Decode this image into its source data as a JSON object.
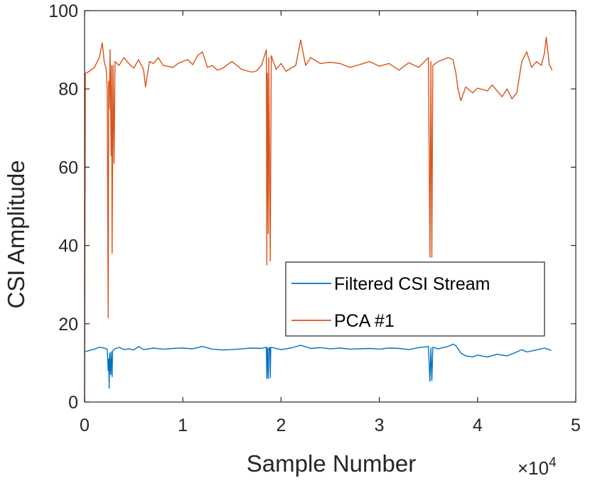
{
  "chart_data": {
    "type": "line",
    "title": "",
    "xlabel": "Sample Number",
    "ylabel": "CSI Amplitude",
    "xlim": [
      0,
      50000
    ],
    "ylim": [
      0,
      100
    ],
    "x_tick_labels": [
      "0",
      "1",
      "2",
      "3",
      "4",
      "5"
    ],
    "x_exponent_label": "×10",
    "x_exponent_power": "4",
    "y_tick_labels": [
      "0",
      "20",
      "40",
      "60",
      "80",
      "100"
    ],
    "x_ticks": [
      0,
      10000,
      20000,
      30000,
      40000,
      50000
    ],
    "y_ticks": [
      0,
      20,
      40,
      60,
      80,
      100
    ],
    "grid": false,
    "legend_position": "lower-right",
    "colors": {
      "filtered": "#0072BD",
      "pca": "#D95319",
      "axis": "#262626"
    },
    "series": [
      {
        "name": "Filtered CSI Stream",
        "color": "#0072BD",
        "points": [
          [
            0,
            12.8
          ],
          [
            500,
            13.2
          ],
          [
            1000,
            13.5
          ],
          [
            1500,
            14.0
          ],
          [
            2000,
            13.8
          ],
          [
            2300,
            13.5
          ],
          [
            2400,
            8.0
          ],
          [
            2450,
            11.0
          ],
          [
            2500,
            3.5
          ],
          [
            2550,
            12.5
          ],
          [
            2650,
            7.0
          ],
          [
            2700,
            12.8
          ],
          [
            2800,
            6.5
          ],
          [
            2850,
            13.0
          ],
          [
            3000,
            13.5
          ],
          [
            3500,
            14.0
          ],
          [
            4000,
            13.4
          ],
          [
            4500,
            13.6
          ],
          [
            5000,
            13.3
          ],
          [
            5500,
            14.2
          ],
          [
            6000,
            13.4
          ],
          [
            7000,
            13.8
          ],
          [
            8000,
            13.5
          ],
          [
            9000,
            13.7
          ],
          [
            10000,
            13.8
          ],
          [
            11000,
            13.6
          ],
          [
            12000,
            14.2
          ],
          [
            13000,
            13.5
          ],
          [
            14000,
            13.3
          ],
          [
            15000,
            13.4
          ],
          [
            16000,
            13.6
          ],
          [
            17000,
            13.8
          ],
          [
            18000,
            13.7
          ],
          [
            18500,
            14.0
          ],
          [
            18550,
            6.0
          ],
          [
            18600,
            13.8
          ],
          [
            18700,
            6.0
          ],
          [
            18750,
            13.8
          ],
          [
            18850,
            13.9
          ],
          [
            18900,
            6.2
          ],
          [
            18950,
            13.9
          ],
          [
            19000,
            14.0
          ],
          [
            20000,
            13.4
          ],
          [
            21000,
            13.8
          ],
          [
            22000,
            14.5
          ],
          [
            23000,
            13.7
          ],
          [
            24000,
            13.9
          ],
          [
            25000,
            13.6
          ],
          [
            26000,
            13.8
          ],
          [
            27000,
            13.5
          ],
          [
            28000,
            13.6
          ],
          [
            29000,
            13.7
          ],
          [
            30000,
            13.5
          ],
          [
            31000,
            13.8
          ],
          [
            32000,
            13.7
          ],
          [
            33000,
            13.4
          ],
          [
            34000,
            13.9
          ],
          [
            35000,
            14.2
          ],
          [
            35150,
            5.3
          ],
          [
            35250,
            13.8
          ],
          [
            35350,
            5.5
          ],
          [
            35450,
            14.0
          ],
          [
            36000,
            13.6
          ],
          [
            37000,
            14.2
          ],
          [
            37500,
            14.8
          ],
          [
            37800,
            14.4
          ],
          [
            38300,
            12.5
          ],
          [
            38800,
            11.8
          ],
          [
            39500,
            11.5
          ],
          [
            40000,
            12.0
          ],
          [
            41000,
            11.5
          ],
          [
            42000,
            12.2
          ],
          [
            43000,
            11.8
          ],
          [
            44000,
            12.8
          ],
          [
            44500,
            13.4
          ],
          [
            45000,
            12.8
          ],
          [
            46000,
            13.3
          ],
          [
            46800,
            13.8
          ],
          [
            47500,
            13.2
          ]
        ]
      },
      {
        "name": "PCA #1",
        "color": "#D95319",
        "points": [
          [
            0,
            0
          ],
          [
            80,
            84
          ],
          [
            500,
            84.5
          ],
          [
            1000,
            85.5
          ],
          [
            1500,
            88
          ],
          [
            1800,
            91.8
          ],
          [
            2000,
            87
          ],
          [
            2200,
            85
          ],
          [
            2300,
            80
          ],
          [
            2400,
            21.5
          ],
          [
            2450,
            82
          ],
          [
            2500,
            75
          ],
          [
            2600,
            90
          ],
          [
            2700,
            63
          ],
          [
            2750,
            86
          ],
          [
            2800,
            38
          ],
          [
            2900,
            86
          ],
          [
            3000,
            61
          ],
          [
            3100,
            87
          ],
          [
            3500,
            86
          ],
          [
            4000,
            88
          ],
          [
            4500,
            86.5
          ],
          [
            5000,
            85.3
          ],
          [
            5500,
            87.5
          ],
          [
            6000,
            85
          ],
          [
            6200,
            80.5
          ],
          [
            6600,
            87
          ],
          [
            7000,
            86.5
          ],
          [
            7500,
            88
          ],
          [
            8000,
            86
          ],
          [
            9000,
            85.5
          ],
          [
            9500,
            86.5
          ],
          [
            10000,
            87
          ],
          [
            10500,
            87.5
          ],
          [
            11000,
            86.2
          ],
          [
            11500,
            88.5
          ],
          [
            12000,
            89.5
          ],
          [
            12500,
            85.5
          ],
          [
            13000,
            86
          ],
          [
            13500,
            84.8
          ],
          [
            14000,
            85.2
          ],
          [
            15000,
            87
          ],
          [
            16000,
            85
          ],
          [
            17000,
            84.3
          ],
          [
            17500,
            84.6
          ],
          [
            18000,
            86
          ],
          [
            18500,
            90
          ],
          [
            18550,
            35
          ],
          [
            18600,
            84
          ],
          [
            18700,
            43
          ],
          [
            18750,
            88
          ],
          [
            18900,
            36
          ],
          [
            19000,
            88.5
          ],
          [
            19500,
            85
          ],
          [
            20000,
            86.5
          ],
          [
            20500,
            84.5
          ],
          [
            21000,
            85.3
          ],
          [
            21500,
            86
          ],
          [
            22000,
            92.5
          ],
          [
            22500,
            86
          ],
          [
            23000,
            88
          ],
          [
            24000,
            86.5
          ],
          [
            25000,
            86.8
          ],
          [
            26000,
            86.5
          ],
          [
            27000,
            85.5
          ],
          [
            28000,
            86.2
          ],
          [
            29000,
            87
          ],
          [
            30000,
            85.8
          ],
          [
            31000,
            86.5
          ],
          [
            32000,
            84.8
          ],
          [
            33000,
            86.7
          ],
          [
            34000,
            85.5
          ],
          [
            35000,
            88
          ],
          [
            35150,
            37
          ],
          [
            35250,
            87
          ],
          [
            35350,
            37
          ],
          [
            35450,
            86
          ],
          [
            36000,
            87
          ],
          [
            37000,
            88
          ],
          [
            37500,
            87.5
          ],
          [
            37800,
            84
          ],
          [
            38000,
            80
          ],
          [
            38300,
            77
          ],
          [
            38800,
            80.5
          ],
          [
            39500,
            79
          ],
          [
            40000,
            80.2
          ],
          [
            41000,
            79.5
          ],
          [
            41500,
            81
          ],
          [
            42000,
            79.5
          ],
          [
            42500,
            78
          ],
          [
            43000,
            80
          ],
          [
            43500,
            77.5
          ],
          [
            44000,
            79
          ],
          [
            44500,
            87
          ],
          [
            45000,
            89.5
          ],
          [
            45500,
            85.5
          ],
          [
            46000,
            87
          ],
          [
            46500,
            86
          ],
          [
            46800,
            89
          ],
          [
            47000,
            93.2
          ],
          [
            47300,
            86.2
          ],
          [
            47600,
            84.8
          ]
        ]
      }
    ]
  }
}
